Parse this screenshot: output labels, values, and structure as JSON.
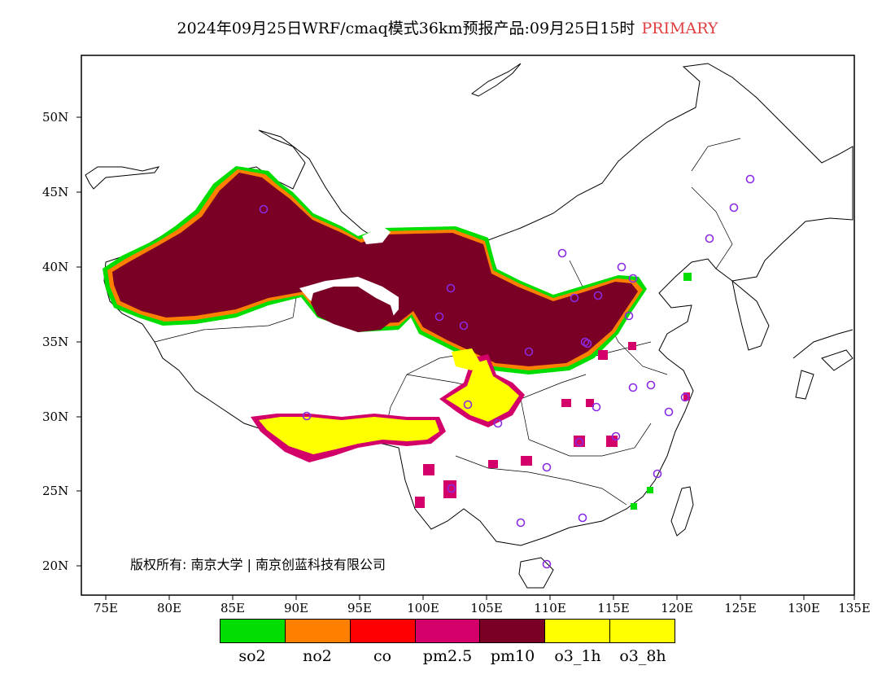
{
  "title": {
    "text": "2024年09月25日WRF/cmaq模式36km预报产品:09月25日15时",
    "tag": "PRIMARY",
    "tag_color": "#e04040"
  },
  "axes": {
    "lat_ticks": [
      "50N",
      "45N",
      "40N",
      "35N",
      "30N",
      "25N",
      "20N"
    ],
    "lon_ticks": [
      "75E",
      "80E",
      "85E",
      "90E",
      "95E",
      "100E",
      "105E",
      "110E",
      "115E",
      "120E",
      "125E",
      "130E",
      "135E"
    ]
  },
  "copyright": "版权所有: 南京大学 | 南京创蓝科技有限公司",
  "legend": {
    "items": [
      {
        "label": "so2",
        "color": "#00dd00"
      },
      {
        "label": "no2",
        "color": "#ff8000"
      },
      {
        "label": "co",
        "color": "#ff0000"
      },
      {
        "label": "pm2.5",
        "color": "#d4006a"
      },
      {
        "label": "pm10",
        "color": "#7a0026"
      },
      {
        "label": "o3_1h",
        "color": "#ffff00"
      },
      {
        "label": "o3_8h",
        "color": "#ffff00"
      }
    ]
  },
  "stations_marker_color": "#8a2be2"
}
